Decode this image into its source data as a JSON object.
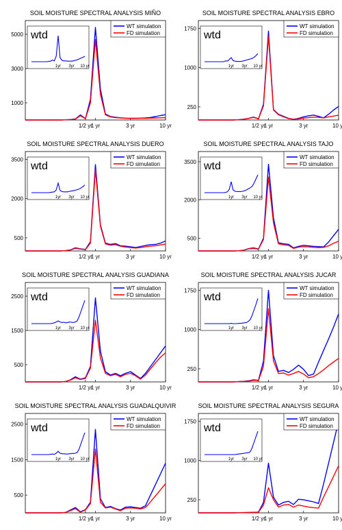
{
  "colors": {
    "wt": "#0000ff",
    "fd": "#ff0000",
    "axis": "#000000"
  },
  "legend": [
    "WT simulation",
    "FD simulation"
  ],
  "inset_label": "wtd",
  "x_ticks": [
    {
      "label": "1/2 yr",
      "pos": 12
    },
    {
      "label": "1 yr",
      "pos": 14
    },
    {
      "label": "3 yr",
      "pos": 21
    },
    {
      "label": "10 yr",
      "pos": 28
    }
  ],
  "inset_x_ticks": [
    {
      "label": "1yr",
      "pos": 14
    },
    {
      "label": "3yr",
      "pos": 21
    },
    {
      "label": "10 yr",
      "pos": 28
    }
  ],
  "x_index": [
    0,
    1,
    2,
    3,
    4,
    5,
    6,
    7,
    8,
    9,
    10,
    11,
    12,
    13,
    14,
    15,
    16,
    17,
    18,
    19,
    20,
    21,
    22,
    23,
    24,
    25,
    26,
    27,
    28
  ],
  "chart_data": [
    {
      "type": "line",
      "title": "SOIL MOISTURE SPECTRAL ANALYSIS MIÑO",
      "y_ticks": [
        1000,
        3000,
        5000
      ],
      "ylim": [
        0,
        5800
      ],
      "series": [
        {
          "name": "WT simulation",
          "values": [
            0,
            0,
            0,
            0,
            0,
            0,
            0,
            0,
            10,
            30,
            60,
            300,
            80,
            1200,
            5400,
            1800,
            350,
            200,
            160,
            130,
            110,
            100,
            100,
            110,
            120,
            150,
            200,
            260,
            310
          ]
        },
        {
          "name": "FD simulation",
          "values": [
            0,
            0,
            0,
            0,
            0,
            0,
            0,
            0,
            10,
            30,
            50,
            250,
            70,
            1000,
            4700,
            1500,
            300,
            180,
            140,
            120,
            100,
            90,
            90,
            95,
            100,
            110,
            120,
            130,
            140
          ]
        }
      ],
      "inset": {
        "ylim": [
          0,
          1
        ],
        "values": [
          0,
          0,
          0,
          0,
          0,
          0,
          0,
          0,
          0,
          0.01,
          0.02,
          0.06,
          0.03,
          0.2,
          0.95,
          0.15,
          0.05,
          0.03,
          0.03,
          0.02,
          0.02,
          0.02,
          0.03,
          0.05,
          0.07,
          0.1,
          0.13,
          0.16,
          0.2
        ]
      }
    },
    {
      "type": "line",
      "title": "SOIL MOISTURE SPECTRAL ANALYSIS EBRO",
      "y_ticks": [
        250,
        1000,
        1750
      ],
      "ylim": [
        0,
        1900
      ],
      "series": [
        {
          "name": "WT simulation",
          "values": [
            0,
            0,
            0,
            0,
            0,
            0,
            0,
            0,
            5,
            15,
            30,
            55,
            25,
            300,
            1700,
            200,
            110,
            70,
            30,
            15,
            30,
            60,
            80,
            95,
            70,
            40,
            110,
            190,
            260
          ]
        },
        {
          "name": "FD simulation",
          "values": [
            0,
            0,
            0,
            0,
            0,
            0,
            0,
            0,
            5,
            15,
            28,
            50,
            22,
            270,
            1600,
            190,
            100,
            60,
            25,
            15,
            20,
            35,
            45,
            55,
            50,
            40,
            60,
            75,
            90
          ]
        }
      ],
      "inset": {
        "ylim": [
          0,
          1
        ],
        "values": [
          0,
          0,
          0,
          0,
          0,
          0,
          0,
          0,
          0,
          0,
          0,
          0.03,
          0.02,
          0.08,
          0.15,
          0.04,
          0.02,
          0.01,
          0.01,
          0.01,
          0.02,
          0.04,
          0.06,
          0.08,
          0.1,
          0.12,
          0.16,
          0.22,
          0.3
        ]
      }
    },
    {
      "type": "line",
      "title": "SOIL MOISTURE SPECTRAL ANALYSIS DUERO",
      "y_ticks": [
        500,
        2000,
        3500
      ],
      "ylim": [
        0,
        3800
      ],
      "series": [
        {
          "name": "WT simulation",
          "values": [
            0,
            0,
            0,
            0,
            0,
            0,
            0,
            0,
            10,
            40,
            120,
            80,
            60,
            350,
            3300,
            1000,
            300,
            250,
            280,
            200,
            180,
            160,
            130,
            170,
            210,
            240,
            250,
            300,
            380
          ]
        },
        {
          "name": "FD simulation",
          "values": [
            0,
            0,
            0,
            0,
            0,
            0,
            0,
            0,
            10,
            35,
            100,
            70,
            50,
            300,
            3100,
            950,
            270,
            220,
            240,
            180,
            150,
            130,
            110,
            130,
            160,
            180,
            200,
            230,
            260
          ]
        }
      ],
      "inset": {
        "ylim": [
          0,
          1
        ],
        "values": [
          0,
          0,
          0,
          0,
          0,
          0,
          0,
          0,
          0,
          0,
          0.01,
          0.02,
          0.03,
          0.1,
          0.35,
          0.08,
          0.04,
          0.03,
          0.03,
          0.03,
          0.05,
          0.06,
          0.07,
          0.09,
          0.11,
          0.13,
          0.17,
          0.22,
          0.28
        ]
      }
    },
    {
      "type": "line",
      "title": "SOIL MOISTURE SPECTRAL ANALYSIS TAJO",
      "y_ticks": [
        500,
        2000,
        3500
      ],
      "ylim": [
        0,
        3900
      ],
      "series": [
        {
          "name": "WT simulation",
          "values": [
            0,
            0,
            0,
            0,
            0,
            0,
            0,
            0,
            5,
            30,
            90,
            120,
            80,
            500,
            3400,
            1300,
            320,
            280,
            260,
            120,
            180,
            220,
            200,
            180,
            170,
            160,
            350,
            600,
            850
          ]
        },
        {
          "name": "FD simulation",
          "values": [
            0,
            0,
            0,
            0,
            0,
            0,
            0,
            0,
            5,
            25,
            80,
            100,
            70,
            450,
            2900,
            1100,
            280,
            240,
            220,
            100,
            150,
            170,
            160,
            140,
            130,
            140,
            200,
            300,
            380
          ]
        }
      ],
      "inset": {
        "ylim": [
          0,
          1
        ],
        "values": [
          0,
          0,
          0,
          0,
          0,
          0,
          0,
          0,
          0,
          0,
          0,
          0.01,
          0.03,
          0.12,
          0.4,
          0.1,
          0.05,
          0.04,
          0.04,
          0.04,
          0.05,
          0.07,
          0.1,
          0.14,
          0.18,
          0.23,
          0.35,
          0.5,
          0.65
        ]
      }
    },
    {
      "type": "line",
      "title": "SOIL MOISTURE SPECTRAL ANALYSIS GUADIANA",
      "y_ticks": [
        500,
        1500,
        2500
      ],
      "ylim": [
        0,
        2900
      ],
      "series": [
        {
          "name": "WT simulation",
          "values": [
            0,
            0,
            0,
            0,
            0,
            0,
            0,
            0,
            10,
            60,
            150,
            80,
            120,
            450,
            2450,
            900,
            300,
            200,
            250,
            180,
            250,
            300,
            200,
            100,
            250,
            450,
            650,
            850,
            1050
          ]
        },
        {
          "name": "FD simulation",
          "values": [
            0,
            0,
            0,
            0,
            0,
            0,
            0,
            0,
            10,
            50,
            120,
            70,
            100,
            400,
            1800,
            700,
            250,
            180,
            220,
            150,
            220,
            250,
            180,
            80,
            200,
            380,
            560,
            720,
            850
          ]
        }
      ],
      "inset": {
        "ylim": [
          0,
          1
        ],
        "values": [
          0,
          0,
          0,
          0,
          0,
          0,
          0,
          0,
          0,
          0,
          0,
          0.01,
          0.03,
          0.06,
          0.1,
          0.06,
          0.04,
          0.05,
          0.03,
          0.04,
          0.06,
          0.05,
          0.04,
          0.06,
          0.1,
          0.25,
          0.45,
          0.65,
          0.85
        ]
      }
    },
    {
      "type": "line",
      "title": "SOIL MOISTURE SPECTRAL ANALYSIS JUCAR",
      "y_ticks": [
        250,
        1000,
        1750
      ],
      "ylim": [
        0,
        1900
      ],
      "series": [
        {
          "name": "WT simulation",
          "values": [
            0,
            0,
            0,
            0,
            0,
            0,
            0,
            0,
            5,
            10,
            20,
            40,
            30,
            400,
            1750,
            500,
            200,
            220,
            180,
            240,
            320,
            240,
            120,
            150,
            380,
            600,
            820,
            1050,
            1300
          ]
        },
        {
          "name": "FD simulation",
          "values": [
            0,
            0,
            0,
            0,
            0,
            0,
            0,
            0,
            5,
            10,
            15,
            30,
            25,
            300,
            1400,
            400,
            160,
            170,
            130,
            160,
            200,
            150,
            80,
            100,
            160,
            230,
            310,
            380,
            450
          ]
        }
      ],
      "inset": {
        "ylim": [
          0,
          1
        ],
        "values": [
          0,
          0,
          0,
          0,
          0,
          0,
          0,
          0,
          0,
          0,
          0,
          0,
          0,
          0,
          0.01,
          0,
          0,
          0,
          0.01,
          0.01,
          0.02,
          0.03,
          0.04,
          0.08,
          0.15,
          0.3,
          0.5,
          0.7,
          0.92
        ]
      }
    },
    {
      "type": "line",
      "title": "SOIL MOISTURE SPECTRAL ANALYSIS GUADALQUIVIR",
      "y_ticks": [
        500,
        1500,
        2500
      ],
      "ylim": [
        0,
        2800
      ],
      "series": [
        {
          "name": "WT simulation",
          "values": [
            0,
            0,
            0,
            0,
            0,
            0,
            0,
            0,
            10,
            80,
            150,
            30,
            90,
            300,
            2350,
            400,
            150,
            180,
            120,
            80,
            160,
            170,
            150,
            130,
            200,
            500,
            800,
            1100,
            1400
          ]
        },
        {
          "name": "FD simulation",
          "values": [
            0,
            0,
            0,
            0,
            0,
            0,
            0,
            0,
            10,
            60,
            120,
            20,
            80,
            260,
            1800,
            300,
            140,
            160,
            110,
            60,
            130,
            140,
            130,
            110,
            150,
            310,
            480,
            650,
            820
          ]
        }
      ],
      "inset": {
        "ylim": [
          0,
          1
        ],
        "values": [
          0,
          0,
          0,
          0,
          0,
          0,
          0,
          0,
          0,
          0,
          0.01,
          0.02,
          0.01,
          0.05,
          0.12,
          0.05,
          0.03,
          0.03,
          0.02,
          0.02,
          0.03,
          0.04,
          0.04,
          0.05,
          0.08,
          0.2,
          0.4,
          0.6,
          0.8
        ]
      }
    },
    {
      "type": "line",
      "title": "SOIL MOISTURE SPECTRAL ANALYSIS SEGURA",
      "y_ticks": [
        250,
        1000,
        1750
      ],
      "ylim": [
        0,
        1900
      ],
      "series": [
        {
          "name": "WT simulation",
          "values": [
            0,
            0,
            0,
            0,
            0,
            0,
            0,
            0,
            2,
            5,
            8,
            10,
            15,
            200,
            950,
            300,
            150,
            200,
            220,
            160,
            260,
            250,
            230,
            210,
            180,
            550,
            950,
            1350,
            1750
          ]
        },
        {
          "name": "FD simulation",
          "values": [
            0,
            0,
            0,
            0,
            0,
            0,
            0,
            0,
            2,
            4,
            6,
            8,
            12,
            150,
            480,
            250,
            110,
            150,
            160,
            110,
            150,
            130,
            110,
            100,
            90,
            300,
            500,
            700,
            900
          ]
        }
      ],
      "inset": {
        "ylim": [
          0,
          1
        ],
        "values": [
          0,
          0,
          0,
          0,
          0,
          0,
          0,
          0,
          0,
          0,
          0,
          0,
          0,
          0,
          0,
          0,
          0,
          0.01,
          0.02,
          0.03,
          0.04,
          0.05,
          0.06,
          0.07,
          0.1,
          0.25,
          0.45,
          0.65,
          0.85
        ]
      }
    }
  ]
}
